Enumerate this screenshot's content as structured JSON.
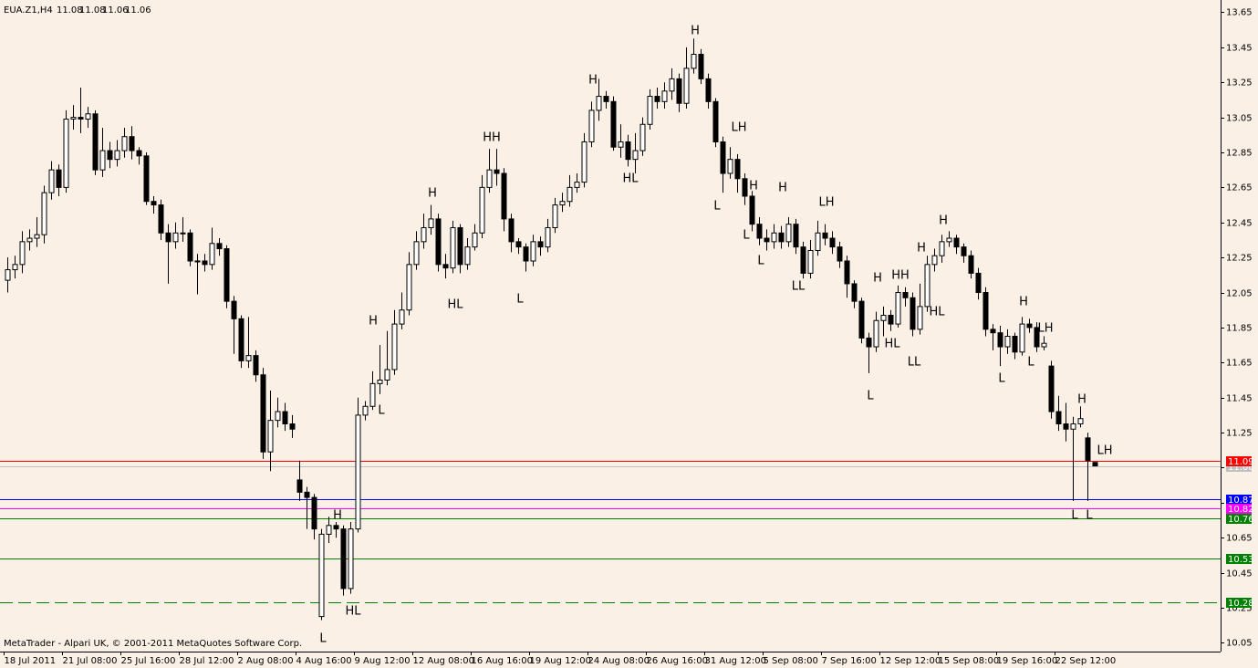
{
  "chart_data": {
    "type": "candlestick",
    "symbol": "EUA.Z1,H4",
    "footer": "MetaTrader - Alpari UK, © 2001-2011 MetaQuotes Software Corp.",
    "x": [
      "18 Jul 2011",
      null,
      null,
      null,
      null,
      null,
      null,
      null,
      "21 Jul 08:00",
      null,
      null,
      null,
      null,
      null,
      null,
      null,
      "25 Jul 16:00",
      null,
      null,
      null,
      null,
      null,
      null,
      null,
      "28 Jul 12:00",
      null,
      null,
      null,
      null,
      null,
      null,
      null,
      "2 Aug 08:00",
      null,
      null,
      null,
      null,
      null,
      null,
      null,
      "4 Aug 16:00",
      null,
      null,
      null,
      null,
      null,
      null,
      null,
      "9 Aug 12:00",
      null,
      null,
      null,
      null,
      null,
      null,
      null,
      "12 Aug 08:00",
      null,
      null,
      null,
      null,
      null,
      null,
      null,
      "16 Aug 16:00",
      null,
      null,
      null,
      null,
      null,
      null,
      null,
      "19 Aug 12:00",
      null,
      null,
      null,
      null,
      null,
      null,
      null,
      "24 Aug 08:00",
      null,
      null,
      null,
      null,
      null,
      null,
      null,
      "26 Aug 16:00",
      null,
      null,
      null,
      null,
      null,
      null,
      null,
      "31 Aug 12:00",
      null,
      null,
      null,
      null,
      null,
      null,
      null,
      "5 Sep 08:00",
      null,
      null,
      null,
      null,
      null,
      null,
      null,
      "7 Sep 16:00",
      null,
      null,
      null,
      null,
      null,
      null,
      null,
      "12 Sep 12:00",
      null,
      null,
      null,
      null,
      null,
      null,
      null,
      "15 Sep 08:00",
      null,
      null,
      null,
      null,
      null,
      null,
      null,
      "19 Sep 16:00",
      null,
      null,
      null,
      null,
      null,
      null,
      null,
      "22 Sep 12:00",
      null,
      null,
      null,
      null,
      null
    ],
    "open": [
      12.12,
      12.18,
      12.21,
      12.34,
      12.36,
      12.38,
      12.62,
      12.75,
      12.65,
      13.04,
      13.05,
      13.04,
      13.07,
      12.75,
      12.86,
      12.81,
      12.86,
      12.94,
      12.86,
      12.83,
      12.57,
      12.55,
      12.39,
      12.34,
      12.39,
      12.39,
      12.23,
      12.23,
      12.21,
      12.33,
      12.3,
      12.0,
      11.9,
      11.66,
      11.69,
      11.58,
      11.14,
      11.32,
      11.37,
      11.3,
      10.98,
      10.91,
      10.88,
      10.2,
      10.67,
      10.72,
      10.7,
      10.36,
      10.7,
      11.35,
      11.4,
      11.53,
      11.55,
      11.61,
      11.87,
      11.95,
      12.21,
      12.34,
      12.42,
      12.47,
      12.21,
      12.19,
      12.42,
      12.21,
      12.31,
      12.39,
      12.65,
      12.75,
      12.73,
      12.47,
      12.34,
      12.31,
      12.23,
      12.34,
      12.31,
      12.42,
      12.55,
      12.57,
      12.65,
      12.68,
      12.91,
      13.09,
      13.17,
      13.14,
      12.88,
      12.91,
      12.81,
      12.86,
      13.01,
      13.17,
      13.14,
      13.2,
      13.27,
      13.13,
      13.33,
      13.41,
      13.27,
      13.14,
      12.91,
      12.73,
      12.81,
      12.7,
      12.6,
      12.44,
      12.36,
      12.34,
      12.39,
      12.34,
      12.44,
      12.31,
      12.16,
      12.29,
      12.39,
      12.36,
      12.31,
      12.23,
      12.1,
      12.0,
      11.79,
      11.74,
      11.89,
      11.92,
      11.87,
      12.05,
      12.02,
      11.84,
      11.97,
      12.21,
      12.26,
      12.34,
      12.36,
      12.31,
      12.26,
      12.16,
      12.05,
      11.84,
      11.82,
      11.74,
      11.8,
      11.71,
      11.87,
      11.85,
      11.74,
      11.63,
      11.37,
      11.3,
      11.27,
      11.3,
      11.22,
      11.08
    ],
    "high": [
      12.25,
      12.26,
      12.4,
      12.41,
      12.48,
      12.66,
      12.8,
      12.78,
      13.09,
      13.12,
      13.22,
      13.11,
      13.09,
      12.99,
      12.91,
      12.92,
      12.99,
      13.0,
      12.88,
      12.85,
      12.6,
      12.58,
      12.44,
      12.45,
      12.48,
      12.41,
      12.27,
      12.27,
      12.42,
      12.36,
      12.32,
      12.03,
      11.92,
      11.91,
      11.72,
      11.62,
      11.49,
      11.45,
      11.42,
      11.35,
      11.09,
      10.94,
      10.9,
      10.7,
      10.77,
      10.74,
      10.72,
      10.74,
      11.45,
      11.43,
      11.6,
      11.75,
      11.83,
      11.95,
      12.05,
      12.28,
      12.4,
      12.5,
      12.55,
      12.5,
      12.27,
      12.46,
      12.44,
      12.36,
      12.44,
      12.72,
      12.87,
      12.87,
      12.76,
      12.5,
      12.36,
      12.33,
      12.38,
      12.37,
      12.47,
      12.59,
      12.62,
      12.72,
      12.73,
      12.96,
      13.14,
      13.27,
      13.2,
      13.17,
      13.01,
      12.95,
      12.96,
      13.05,
      13.21,
      13.22,
      13.25,
      13.33,
      13.3,
      13.45,
      13.5,
      13.44,
      13.3,
      13.16,
      12.94,
      12.88,
      12.84,
      12.73,
      12.63,
      12.48,
      12.41,
      12.44,
      12.43,
      12.48,
      12.47,
      12.34,
      12.35,
      12.46,
      12.44,
      12.4,
      12.34,
      12.26,
      12.12,
      12.02,
      11.82,
      11.94,
      11.97,
      11.95,
      12.09,
      12.08,
      12.05,
      12.1,
      12.26,
      12.3,
      12.38,
      12.4,
      12.38,
      12.33,
      12.29,
      12.19,
      12.08,
      11.87,
      11.86,
      11.84,
      11.82,
      11.91,
      11.9,
      11.88,
      11.8,
      11.66,
      11.46,
      11.42,
      11.34,
      11.4,
      11.25,
      11.08
    ],
    "low": [
      12.05,
      12.13,
      12.16,
      12.29,
      12.31,
      12.33,
      12.58,
      12.6,
      12.62,
      12.98,
      12.96,
      12.99,
      12.72,
      12.71,
      12.76,
      12.77,
      12.82,
      12.81,
      12.78,
      12.55,
      12.5,
      12.35,
      12.1,
      12.3,
      12.34,
      12.2,
      12.04,
      12.17,
      12.18,
      12.26,
      11.96,
      11.7,
      11.62,
      11.62,
      11.54,
      11.1,
      11.03,
      11.28,
      11.26,
      11.22,
      10.86,
      10.7,
      10.64,
      10.18,
      10.62,
      10.65,
      10.32,
      10.33,
      10.68,
      11.32,
      11.38,
      11.47,
      11.52,
      11.58,
      11.84,
      11.92,
      12.18,
      12.3,
      12.38,
      12.17,
      12.13,
      12.16,
      12.16,
      12.18,
      12.29,
      12.36,
      12.62,
      12.66,
      12.4,
      12.28,
      12.27,
      12.17,
      12.2,
      12.26,
      12.28,
      12.39,
      12.51,
      12.54,
      12.62,
      12.65,
      12.88,
      13.03,
      13.1,
      12.86,
      12.82,
      12.77,
      12.73,
      12.83,
      12.98,
      13.1,
      13.1,
      13.15,
      13.08,
      13.1,
      13.3,
      13.24,
      13.1,
      12.88,
      12.62,
      12.7,
      12.62,
      12.55,
      12.4,
      12.32,
      12.29,
      12.3,
      12.3,
      12.31,
      12.27,
      12.13,
      12.13,
      12.26,
      12.32,
      12.27,
      12.19,
      12.02,
      11.96,
      11.76,
      11.59,
      11.71,
      11.8,
      11.83,
      11.85,
      11.97,
      11.8,
      11.81,
      11.94,
      12.17,
      12.22,
      12.31,
      12.27,
      12.22,
      12.13,
      12.01,
      11.8,
      11.72,
      11.63,
      11.7,
      11.67,
      11.69,
      11.82,
      11.71,
      11.72,
      11.33,
      11.26,
      11.2,
      10.86,
      11.28,
      10.86,
      11.06
    ],
    "close": [
      12.18,
      12.21,
      12.34,
      12.36,
      12.38,
      12.62,
      12.75,
      12.65,
      13.04,
      13.05,
      13.04,
      13.07,
      12.75,
      12.86,
      12.81,
      12.86,
      12.94,
      12.86,
      12.83,
      12.57,
      12.55,
      12.39,
      12.34,
      12.39,
      12.39,
      12.23,
      12.23,
      12.21,
      12.33,
      12.3,
      12.0,
      11.9,
      11.66,
      11.69,
      11.58,
      11.14,
      11.32,
      11.37,
      11.3,
      11.27,
      10.91,
      10.88,
      10.7,
      10.67,
      10.72,
      10.7,
      10.36,
      10.7,
      11.35,
      11.4,
      11.53,
      11.55,
      11.61,
      11.87,
      11.95,
      12.21,
      12.34,
      12.42,
      12.47,
      12.21,
      12.19,
      12.42,
      12.21,
      12.31,
      12.39,
      12.65,
      12.75,
      12.73,
      12.47,
      12.34,
      12.31,
      12.23,
      12.34,
      12.31,
      12.42,
      12.55,
      12.57,
      12.65,
      12.68,
      12.91,
      13.09,
      13.17,
      13.14,
      12.88,
      12.91,
      12.81,
      12.86,
      13.01,
      13.17,
      13.14,
      13.2,
      13.27,
      13.13,
      13.33,
      13.41,
      13.27,
      13.14,
      12.91,
      12.73,
      12.81,
      12.7,
      12.6,
      12.44,
      12.36,
      12.34,
      12.39,
      12.34,
      12.44,
      12.31,
      12.16,
      12.29,
      12.39,
      12.36,
      12.31,
      12.23,
      12.1,
      12.0,
      11.79,
      11.74,
      11.89,
      11.92,
      11.87,
      12.05,
      12.02,
      11.84,
      11.97,
      12.21,
      12.26,
      12.34,
      12.36,
      12.31,
      12.26,
      12.16,
      12.05,
      11.84,
      11.82,
      11.74,
      11.8,
      11.71,
      11.87,
      11.85,
      11.74,
      11.76,
      11.37,
      11.3,
      11.27,
      11.3,
      11.33,
      11.09,
      11.06
    ],
    "ylim": [
      10.0,
      13.72
    ],
    "yticks": [
      13.65,
      13.45,
      13.25,
      13.05,
      12.85,
      12.65,
      12.45,
      12.25,
      12.05,
      11.85,
      11.65,
      11.45,
      11.25,
      11.05,
      10.85,
      10.65,
      10.45,
      10.25,
      10.05
    ],
    "levels": [
      {
        "value": 11.06,
        "color": "#c0c0c0",
        "style": "solid"
      },
      {
        "value": 11.09,
        "color": "#ff0000",
        "style": "solid"
      },
      {
        "value": 10.87,
        "color": "#0000ff",
        "style": "solid"
      },
      {
        "value": 10.82,
        "color": "#ff00ff",
        "style": "solid"
      },
      {
        "value": 10.76,
        "color": "#008000",
        "style": "solid"
      },
      {
        "value": 10.53,
        "color": "#008000",
        "style": "solid"
      },
      {
        "value": 10.28,
        "color": "#008000",
        "style": "dashed"
      }
    ],
    "annotations": [
      "H",
      "H",
      "L",
      "L",
      "HL",
      "H",
      "HL",
      "HH",
      "L",
      "H",
      "HL",
      "H",
      "LH",
      "L",
      "H",
      "L",
      "H",
      "L",
      "LH",
      "LL",
      "H",
      "L",
      "HH",
      "HL",
      "H",
      "LL",
      "H",
      "HL",
      "H",
      "L",
      "LH",
      "L",
      "H",
      "L",
      "LH",
      "L"
    ]
  }
}
